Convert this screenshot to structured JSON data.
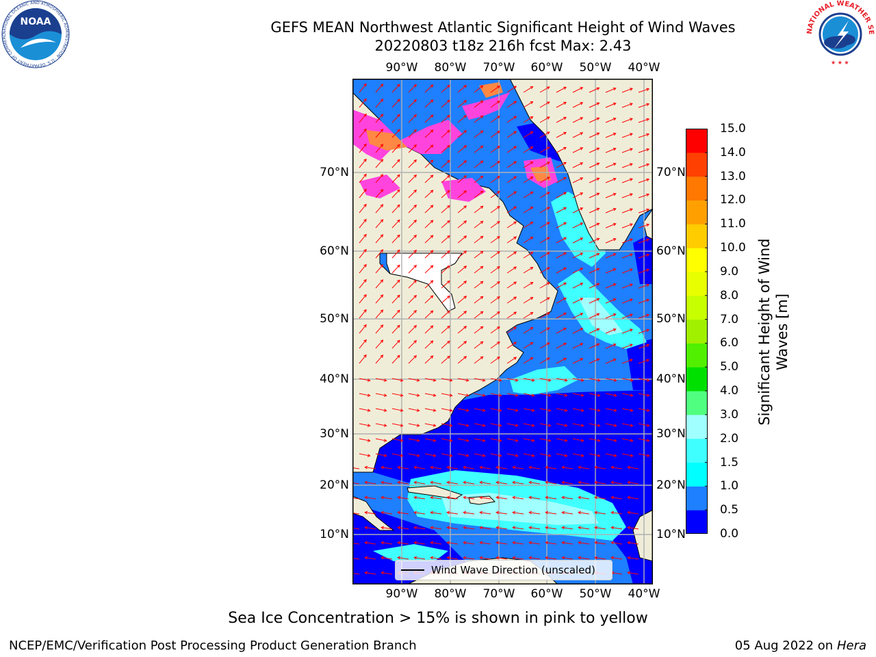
{
  "header": {
    "title_line1": "GEFS MEAN Northwest Atlantic Significant Height of Wind Waves",
    "title_line2": "20220803 t18z 216h fcst   Max: 2.43"
  },
  "map": {
    "lon_labels": [
      "90°W",
      "80°W",
      "70°W",
      "60°W",
      "50°W",
      "40°W"
    ],
    "lat_labels": [
      "70°N",
      "60°N",
      "50°N",
      "40°N",
      "30°N",
      "20°N",
      "10°N"
    ],
    "colors": {
      "land": "#efedd8",
      "no_data": "#ffffff",
      "grid": "#b0b0b0",
      "coast": "#000000",
      "arrow": "#ff0000",
      "ice_pink": "#ff44dd",
      "ice_orange": "#ff8844"
    }
  },
  "colorbar": {
    "label": "Significant Height of Wind Waves [m]",
    "label_line1": "Significant Height of Wind",
    "label_line2": "Waves [m]",
    "ticks": [
      "0.0",
      "0.5",
      "1.0",
      "1.5",
      "2.0",
      "3.0",
      "4.0",
      "5.0",
      "6.0",
      "7.0",
      "8.0",
      "9.0",
      "10.0",
      "11.0",
      "12.0",
      "13.0",
      "14.0",
      "15.0"
    ],
    "colors": [
      "#0000ff",
      "#1e7fff",
      "#00ffff",
      "#40ffff",
      "#a0ffff",
      "#50ff80",
      "#00e000",
      "#50f000",
      "#a0f000",
      "#c8ff00",
      "#e8ff00",
      "#ffff00",
      "#ffcc00",
      "#ffa000",
      "#ff7800",
      "#ff4000",
      "#ff0000"
    ]
  },
  "legend": {
    "label": "Wind Wave Direction (unscaled)"
  },
  "note": "Sea Ice Concentration > 15% is shown in pink to yellow",
  "footer": {
    "left": "NCEP/EMC/Verification Post Processing Product Generation Branch",
    "date": "05 Aug 2022 on",
    "host": "Hera"
  },
  "logos": {
    "noaa_text": "NOAA",
    "noaa_ring": "NATIONAL OCEANIC AND ATMOSPHERIC ADMINISTRATION · U.S. DEPARTMENT OF COMMERCE",
    "nws_ring": "NATIONAL WEATHER SERVICE"
  }
}
